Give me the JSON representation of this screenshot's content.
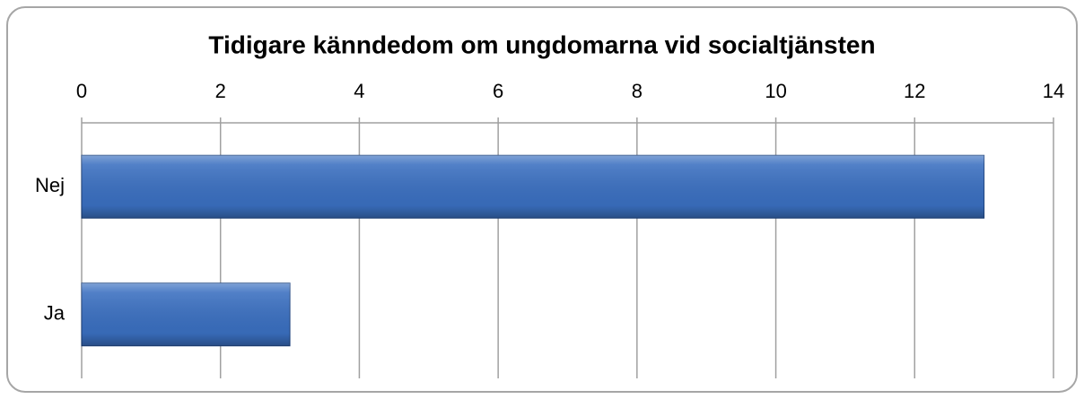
{
  "chart_data": {
    "type": "bar",
    "orientation": "horizontal",
    "title": "Tidigare känndedom om ungdomarna vid socialtjänsten",
    "categories": [
      "Nej",
      "Ja"
    ],
    "values": [
      13,
      3
    ],
    "color": "#3a6fc0",
    "xlim": [
      0,
      14
    ],
    "xticks": [
      0,
      2,
      4,
      6,
      8,
      10,
      12,
      14
    ],
    "grid": true
  }
}
